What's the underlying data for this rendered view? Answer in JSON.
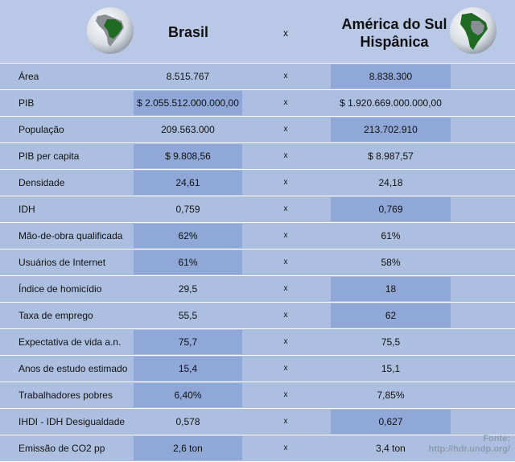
{
  "header": {
    "brasil": "Brasil",
    "x": "x",
    "america_line1": "América do Sul",
    "america_line2": "Hispânica"
  },
  "rows": [
    {
      "label": "Área",
      "brasil": "8.515.767",
      "x": "x",
      "america": "8.838.300",
      "highlight": "america"
    },
    {
      "label": "PIB",
      "brasil": "$ 2.055.512.000.000,00",
      "x": "x",
      "america": "$ 1.920.669.000.000,00",
      "highlight": "brasil"
    },
    {
      "label": "População",
      "brasil": "209.563.000",
      "x": "x",
      "america": "213.702.910",
      "highlight": "america"
    },
    {
      "label": "PIB per capita",
      "brasil": "$ 9.808,56",
      "x": "x",
      "america": "$ 8.987,57",
      "highlight": "brasil"
    },
    {
      "label": "Densidade",
      "brasil": "24,61",
      "x": "x",
      "america": "24,18",
      "highlight": "brasil"
    },
    {
      "label": "IDH",
      "brasil": "0,759",
      "x": "x",
      "america": "0,769",
      "highlight": "america"
    },
    {
      "label": "Mão-de-obra qualificada",
      "brasil": "62%",
      "x": "x",
      "america": "61%",
      "highlight": "brasil"
    },
    {
      "label": "Usuários de Internet",
      "brasil": "61%",
      "x": "x",
      "america": "58%",
      "highlight": "brasil"
    },
    {
      "label": "Índice de homicídio",
      "brasil": "29,5",
      "x": "x",
      "america": "18",
      "highlight": "america"
    },
    {
      "label": "Taxa de emprego",
      "brasil": "55,5",
      "x": "x",
      "america": "62",
      "highlight": "america"
    },
    {
      "label": "Expectativa de vida a.n.",
      "brasil": "75,7",
      "x": "x",
      "america": "75,5",
      "highlight": "brasil"
    },
    {
      "label": "Anos de estudo estimado",
      "brasil": "15,4",
      "x": "x",
      "america": "15,1",
      "highlight": "brasil"
    },
    {
      "label": "Trabalhadores pobres",
      "brasil": "6,40%",
      "x": "x",
      "america": "7,85%",
      "highlight": "brasil"
    },
    {
      "label": "IHDI - IDH Desigualdade",
      "brasil": "0,578",
      "x": "x",
      "america": "0,627",
      "highlight": "america"
    },
    {
      "label": "Emissão de CO2 pp",
      "brasil": "2,6 ton",
      "x": "x",
      "america": "3,4 ton",
      "highlight": "brasil"
    }
  ],
  "source": {
    "line1": "Fonte:",
    "line2": "http://hdr.undp.org/"
  },
  "colors": {
    "background": "#adbfe0",
    "highlight": "#8fa8d8",
    "ocean": "#dfe6ee",
    "land": "#1f6b24"
  }
}
